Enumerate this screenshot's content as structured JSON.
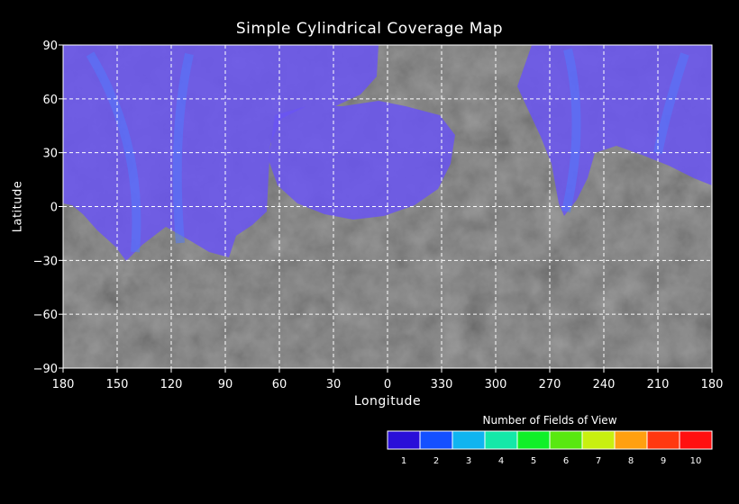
{
  "map": {
    "title": "Simple Cylindrical Coverage Map",
    "xlabel": "Longitude",
    "ylabel": "Latitude",
    "x_ticks": [
      "180",
      "150",
      "120",
      "90",
      "60",
      "30",
      "0",
      "330",
      "300",
      "270",
      "240",
      "210",
      "180"
    ],
    "y_ticks": [
      "90",
      "60",
      "30",
      "0",
      "−30",
      "−60",
      "−90"
    ],
    "grid": true,
    "coverage_color": "#6a55f2",
    "surface_color": "#5c5c5c"
  },
  "legend": {
    "title": "Number of Fields of View",
    "bins": [
      {
        "label": "1",
        "color": "#2a0fd8"
      },
      {
        "label": "2",
        "color": "#1450ff"
      },
      {
        "label": "3",
        "color": "#10b4f0"
      },
      {
        "label": "4",
        "color": "#14e8a8"
      },
      {
        "label": "5",
        "color": "#10f028"
      },
      {
        "label": "6",
        "color": "#58e810"
      },
      {
        "label": "7",
        "color": "#c8f010"
      },
      {
        "label": "8",
        "color": "#ffa010"
      },
      {
        "label": "9",
        "color": "#ff3810"
      },
      {
        "label": "10",
        "color": "#ff1010"
      }
    ]
  },
  "chart_data": {
    "type": "heatmap",
    "title": "Simple Cylindrical Coverage Map",
    "xlabel": "Longitude",
    "ylabel": "Latitude",
    "xlim": [
      180,
      -180
    ],
    "ylim": [
      -90,
      90
    ],
    "coverage_regions": [
      {
        "fields_of_view": 1,
        "lon_range_west": [
          180,
          0
        ],
        "lat_range": [
          -28,
          90
        ]
      },
      {
        "fields_of_view": 1,
        "lon_range_west": [
          330,
          180
        ],
        "lat_range": [
          -5,
          90
        ]
      }
    ]
  }
}
